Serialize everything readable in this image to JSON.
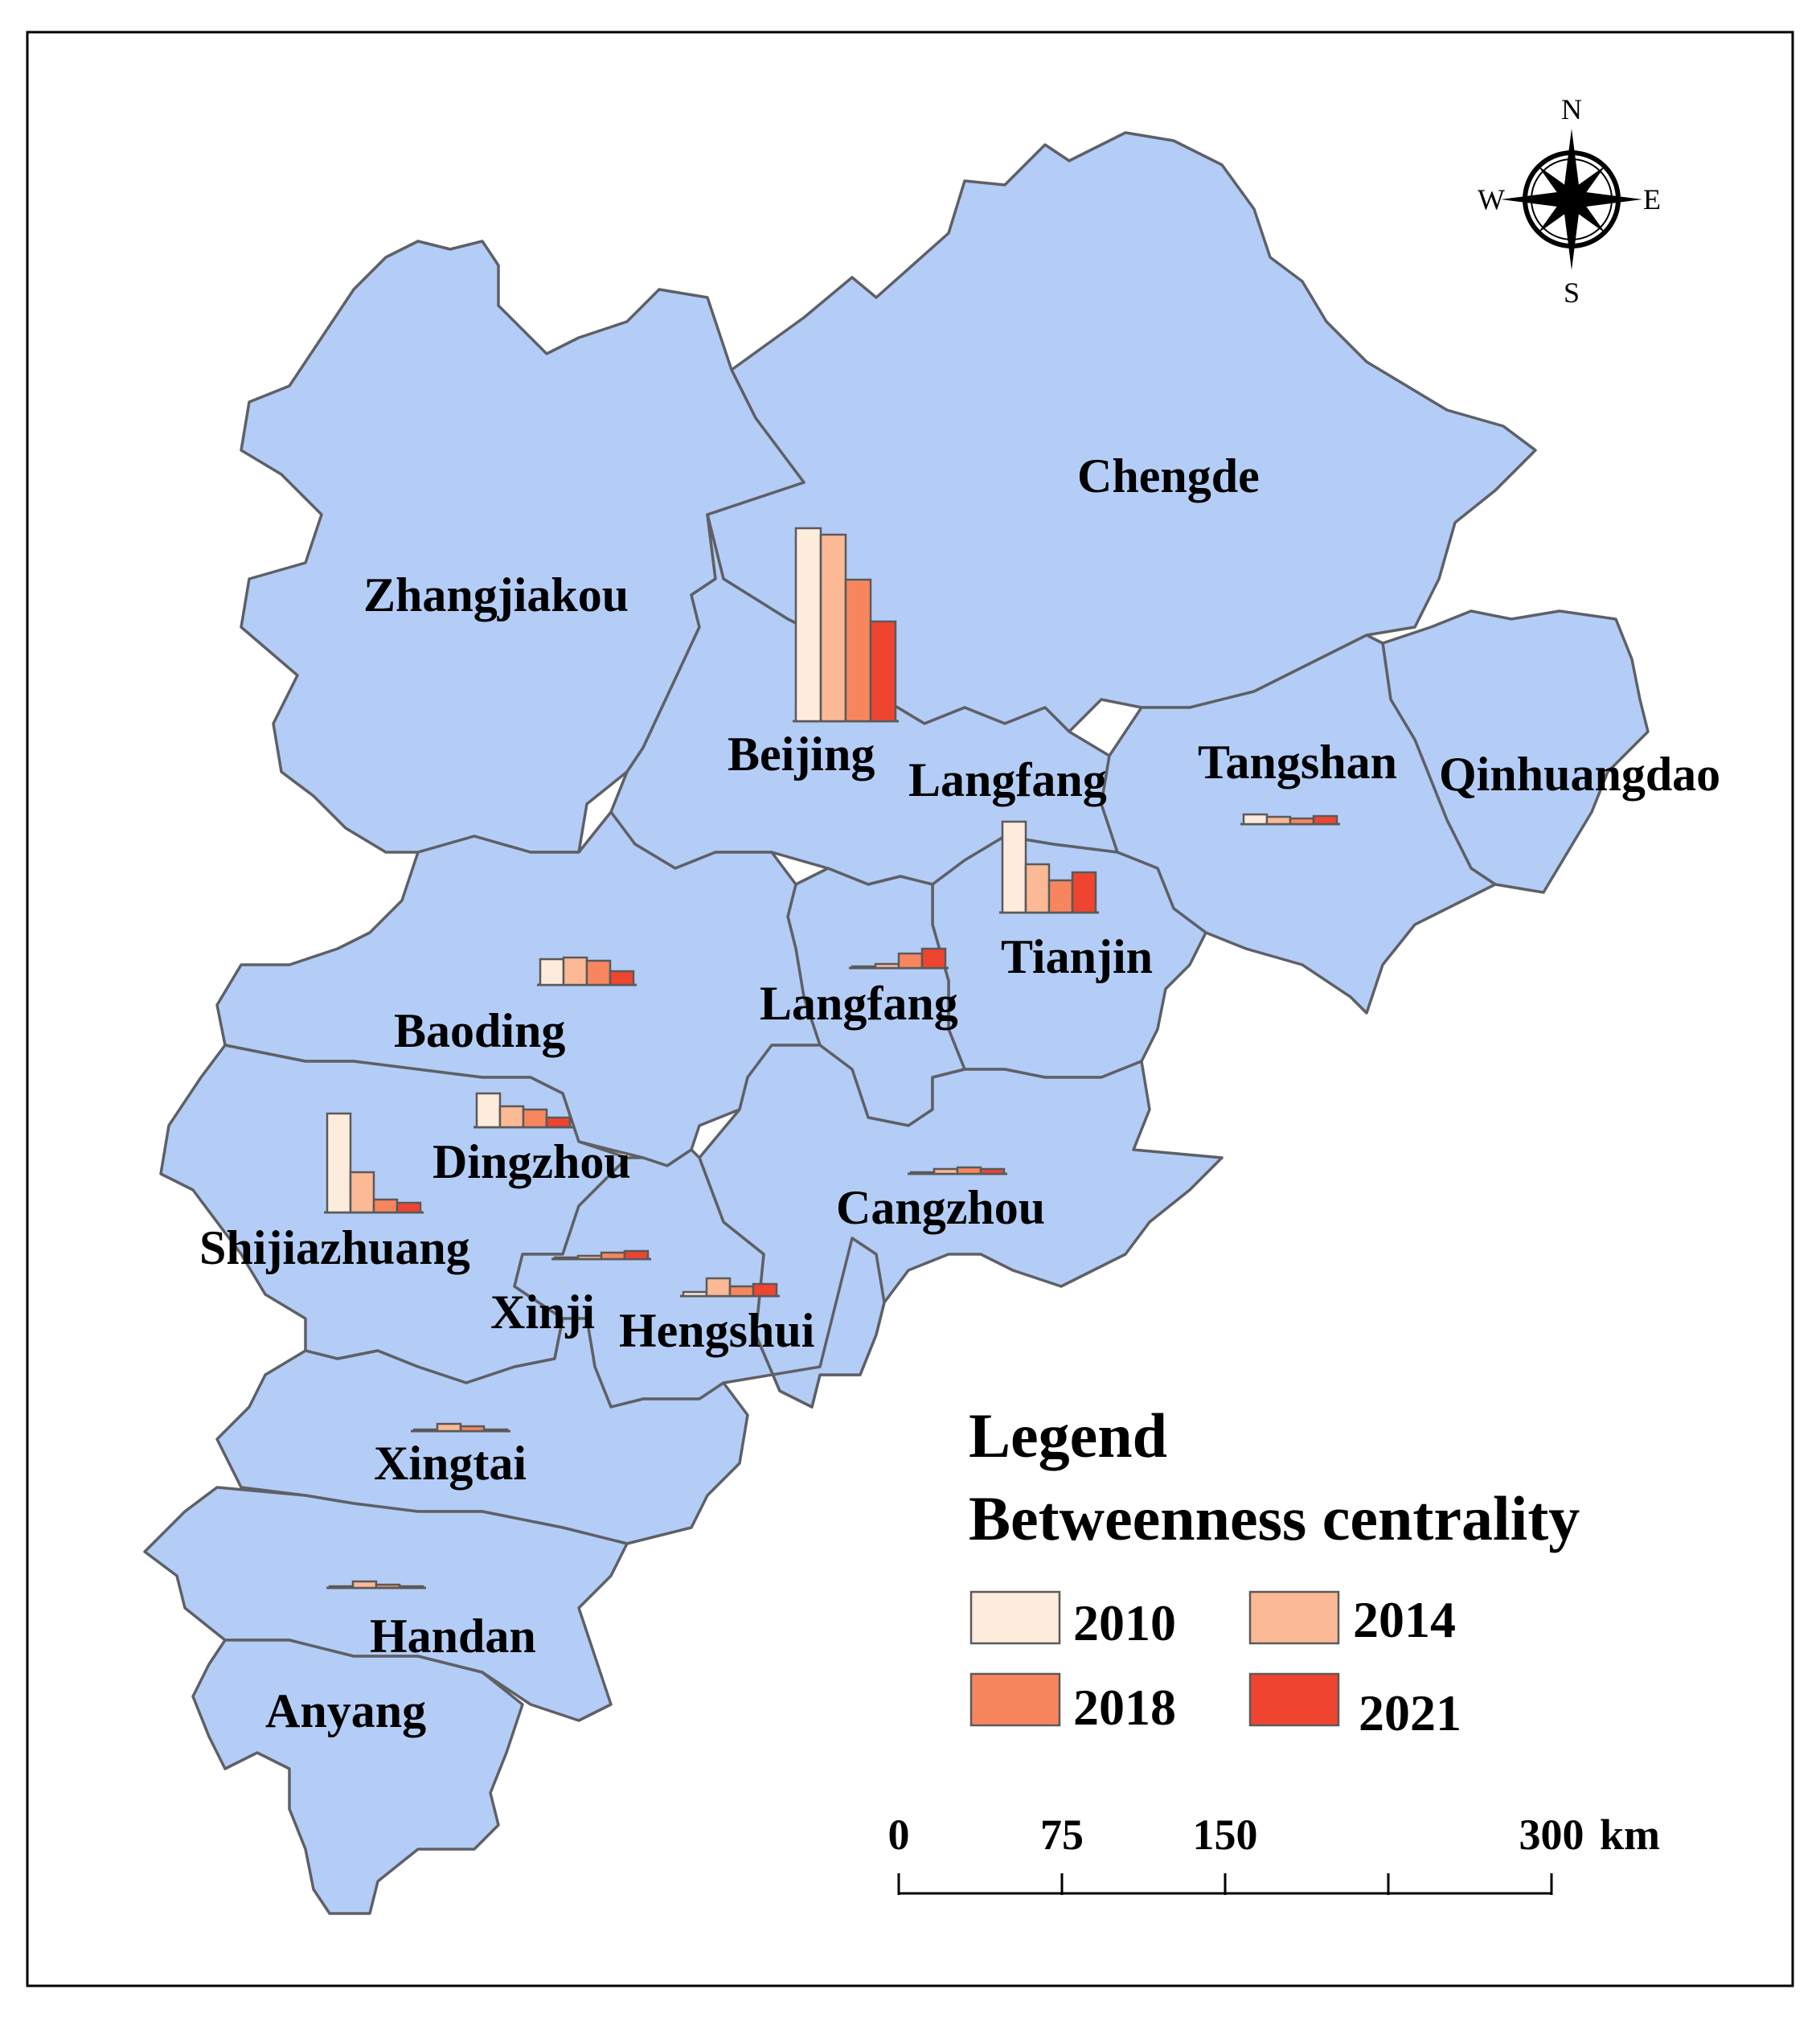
{
  "map": {
    "legend_title": "Legend",
    "legend_subtitle": "Betweenness centrality",
    "years": [
      "2010",
      "2014",
      "2018",
      "2021"
    ],
    "year_colors": [
      "#fdebdc",
      "#fbb995",
      "#f7865f",
      "#ee4430"
    ],
    "region_color": "#b4cdf6",
    "scale": {
      "ticks": [
        "0",
        "75",
        "150",
        "300"
      ],
      "unit": "km"
    },
    "compass": {
      "north": "N",
      "south": "S",
      "east": "E",
      "west": "W"
    },
    "region_names": [
      "Zhangjiakou",
      "Chengde",
      "Beijing",
      "Langfang",
      "Tangshan",
      "Qinhuangdao",
      "Tianjin",
      "Langfang",
      "Baoding",
      "Dingzhou",
      "Shijiazhuang",
      "Cangzhou",
      "Xinji",
      "Hengshui",
      "Xingtai",
      "Handan",
      "Anyang"
    ]
  },
  "chart_data": {
    "type": "bar",
    "title": "Betweenness centrality",
    "series_names": [
      "2010",
      "2014",
      "2018",
      "2021"
    ],
    "cities": [
      {
        "name": "Beijing",
        "values": [
          240,
          232,
          176,
          124
        ]
      },
      {
        "name": "Tianjin",
        "values": [
          113,
          60,
          40,
          50
        ]
      },
      {
        "name": "Shijiazhuang",
        "values": [
          123,
          50,
          16,
          12
        ]
      },
      {
        "name": "Baoding",
        "values": [
          32,
          34,
          30,
          17
        ]
      },
      {
        "name": "Dingzhou",
        "values": [
          42,
          26,
          22,
          12
        ]
      },
      {
        "name": "Langfang",
        "values": [
          2,
          5,
          18,
          24
        ]
      },
      {
        "name": "Tangshan",
        "values": [
          12,
          9,
          7,
          10
        ]
      },
      {
        "name": "Hengshui",
        "values": [
          5,
          22,
          12,
          15
        ]
      },
      {
        "name": "Xinji",
        "values": [
          2,
          4,
          8,
          10
        ]
      },
      {
        "name": "Cangzhou",
        "values": [
          2,
          6,
          8,
          6
        ]
      },
      {
        "name": "Xingtai",
        "values": [
          2,
          9,
          6,
          2
        ]
      },
      {
        "name": "Handan",
        "values": [
          2,
          8,
          4,
          2
        ]
      }
    ]
  }
}
